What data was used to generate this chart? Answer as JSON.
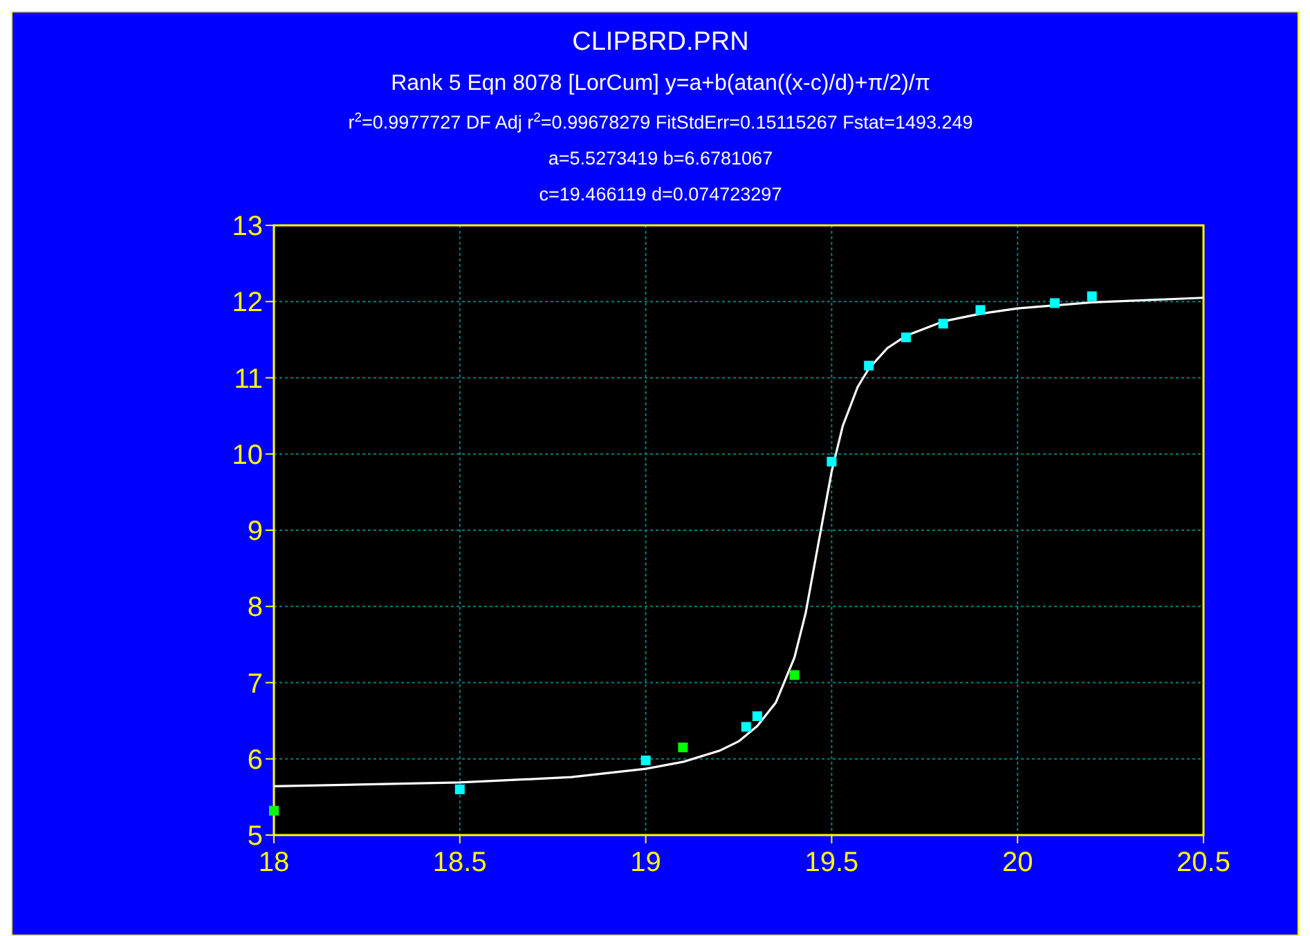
{
  "chart_data": {
    "type": "scatter",
    "title": "CLIPBRD.PRN",
    "subtitle": "Rank 5  Eqn 8078  [LorCum] y=a+b(atan((x-c)/d)+π/2)/π",
    "annotations": [
      "r$^{2}$=0.9977727  DF Adj r$^{2}$=0.99678279  FitStdErr=0.15115267  Fstat=1493.249",
      "a=5.5273419 b=6.6781067",
      "c=19.466119 d=0.074723297"
    ],
    "series": [
      {
        "type": "line",
        "color": "#ffffff",
        "marker": "none",
        "line_style": "solid",
        "x": [
          18,
          18.5,
          18.8,
          19,
          19.1,
          19.2,
          19.25,
          19.3,
          19.35,
          19.4,
          19.43,
          19.466,
          19.5,
          19.53,
          19.57,
          19.6,
          19.65,
          19.7,
          19.8,
          19.9,
          20,
          20.2,
          20.5
        ],
        "values": [
          5.64,
          5.69,
          5.76,
          5.87,
          5.96,
          6.11,
          6.23,
          6.43,
          6.74,
          7.33,
          7.91,
          8.87,
          9.77,
          10.37,
          10.88,
          11.12,
          11.39,
          11.55,
          11.74,
          11.84,
          11.91,
          11.99,
          12.05
        ]
      },
      {
        "color": "#00ff00",
        "marker": "square",
        "x": [
          18,
          19.1,
          19.4
        ],
        "values": [
          5.32,
          6.15,
          7.1
        ]
      },
      {
        "color": "#00ffff",
        "marker": "square",
        "x": [
          18.5,
          19,
          19.27,
          19.3,
          19.5,
          19.6,
          19.7,
          19.8,
          19.9,
          20.1,
          20.2
        ],
        "values": [
          5.6,
          5.98,
          6.42,
          6.56,
          9.9,
          11.16,
          11.53,
          11.71,
          11.89,
          11.98,
          12.07
        ]
      }
    ],
    "xlim": [
      18,
      20.5
    ],
    "xticks": [
      18,
      18.5,
      19,
      19.5,
      20,
      20.5
    ],
    "ylim": [
      5,
      13
    ],
    "yticks": [
      5,
      6,
      7,
      8,
      9,
      10,
      11,
      12,
      13
    ],
    "grid": true
  }
}
